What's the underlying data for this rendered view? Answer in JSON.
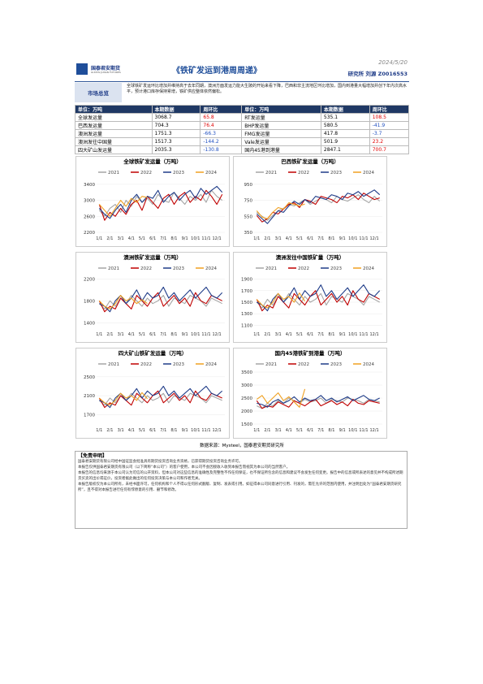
{
  "header": {
    "logo": "国泰君安期货",
    "logo_en": "GUOTAI JUNAN FUTURES",
    "title": "《铁矿发运到港周周递》",
    "date": "2024/5/20",
    "dept": "研究所",
    "author": "刘源",
    "license": "Z0016553"
  },
  "overview": {
    "label": "市场总览",
    "text": "全球铁矿发运环比增加并维持高于去年同期，澳洲方面发运力能大生陂的开始来看下降，巴西和非主流地区环比增加，国内到港量大幅增加并创下年内次高水平，预计港口库存保持累增，铁矿供应整体依然偏松。"
  },
  "table": {
    "header": [
      "单位：万吨",
      "本期数据",
      "周环比",
      "单位：万吨",
      "本期数据",
      "周环比"
    ],
    "rows": [
      [
        "全球发运量",
        3068.7,
        65.8,
        "RT发运量",
        535.1,
        108.5
      ],
      [
        "巴西发运量",
        704.3,
        76.4,
        "BHP发运量",
        580.5,
        -41.9
      ],
      [
        "澳洲发运量",
        1751.3,
        -66.3,
        "FMG发运量",
        417.8,
        -3.7
      ],
      [
        "澳洲发往中国量",
        1517.3,
        -144.2,
        "Vale发运量",
        501.9,
        23.2
      ],
      [
        "四大矿山发运量",
        2035.3,
        -130.8,
        "国内45港到港量",
        2847.1,
        700.7
      ]
    ]
  },
  "chart_data": [
    {
      "type": "line",
      "title": "全球铁矿发运量（万吨）",
      "categories": [
        "1/1",
        null,
        "2/1",
        null,
        "3/1",
        null,
        "4/1",
        null,
        "5/1",
        null,
        "6/1",
        null,
        "7/1",
        null,
        "8/1",
        null,
        "9/1",
        null,
        "10/1",
        null,
        "11/1",
        null,
        "12/1",
        null
      ],
      "ylim": [
        2200,
        3500
      ],
      "yticks": [
        2200,
        2600,
        3000,
        3400
      ],
      "series": [
        {
          "name": "2021",
          "color": "#a5a5a5",
          "values": [
            2750,
            2600,
            2800,
            2900,
            2700,
            3000,
            2850,
            3100,
            2950,
            3050,
            2900,
            3150,
            3000,
            2950,
            3200,
            3050,
            2900,
            3100,
            3000,
            3150,
            2950,
            3250,
            3100,
            3000
          ]
        },
        {
          "name": "2022",
          "color": "#c00000",
          "values": [
            2900,
            2500,
            2700,
            2600,
            2800,
            2650,
            2900,
            3000,
            2750,
            3100,
            2950,
            2800,
            3050,
            3150,
            2900,
            3100,
            3200,
            2950,
            3100,
            3000,
            3250,
            3100,
            2900,
            3150
          ]
        },
        {
          "name": "2023",
          "color": "#1f3c88",
          "values": [
            2800,
            2650,
            2550,
            2750,
            2900,
            2700,
            3000,
            3150,
            2950,
            3100,
            3050,
            3250,
            2950,
            3100,
            3200,
            3000,
            3150,
            3250,
            3050,
            3300,
            3150,
            3250,
            3350,
            3200
          ]
        },
        {
          "name": "2024",
          "color": "#f0a020",
          "values": [
            2900,
            2750,
            2600,
            2800,
            3000,
            2850,
            3050,
            2950,
            3100,
            3070,
            null,
            null,
            null,
            null,
            null,
            null,
            null,
            null,
            null,
            null,
            null,
            null,
            null,
            null
          ]
        }
      ]
    },
    {
      "type": "line",
      "title": "巴西铁矿发运量（万吨）",
      "categories": [
        "1/1",
        null,
        "2/1",
        null,
        "3/1",
        null,
        "4/1",
        null,
        "5/1",
        null,
        "6/1",
        null,
        "7/1",
        null,
        "8/1",
        null,
        "9/1",
        null,
        "10/1",
        null,
        "11/1",
        null,
        "12/1",
        null
      ],
      "ylim": [
        350,
        1000
      ],
      "yticks": [
        350,
        550,
        750,
        950
      ],
      "series": [
        {
          "name": "2021",
          "color": "#a5a5a5",
          "values": [
            600,
            550,
            500,
            560,
            620,
            650,
            700,
            680,
            720,
            760,
            700,
            740,
            780,
            760,
            720,
            800,
            760,
            740,
            780,
            820,
            760,
            720,
            800,
            740
          ]
        },
        {
          "name": "2022",
          "color": "#c00000",
          "values": [
            560,
            480,
            520,
            600,
            580,
            640,
            700,
            720,
            660,
            760,
            740,
            700,
            800,
            780,
            760,
            720,
            800,
            780,
            820,
            760,
            840,
            800,
            760,
            780
          ]
        },
        {
          "name": "2023",
          "color": "#1f3c88",
          "values": [
            580,
            520,
            460,
            540,
            620,
            600,
            680,
            740,
            700,
            760,
            720,
            800,
            780,
            760,
            820,
            800,
            760,
            840,
            820,
            860,
            800,
            840,
            880,
            820
          ]
        },
        {
          "name": "2024",
          "color": "#f0a020",
          "values": [
            620,
            540,
            520,
            600,
            660,
            640,
            720,
            700,
            680,
            704,
            null,
            null,
            null,
            null,
            null,
            null,
            null,
            null,
            null,
            null,
            null,
            null,
            null,
            null
          ]
        }
      ]
    },
    {
      "type": "line",
      "title": "澳洲铁矿发运量（万吨）",
      "categories": [
        "1/1",
        null,
        "2/1",
        null,
        "3/1",
        null,
        "4/1",
        null,
        "5/1",
        null,
        "6/1",
        null,
        "7/1",
        null,
        "8/1",
        null,
        "9/1",
        null,
        "10/1",
        null,
        "11/1",
        null,
        "12/1",
        null
      ],
      "ylim": [
        1300,
        2250
      ],
      "yticks": [
        1400,
        1800,
        2200
      ],
      "series": [
        {
          "name": "2021",
          "color": "#a5a5a5",
          "values": [
            1750,
            1650,
            1800,
            1700,
            1850,
            1750,
            1900,
            1800,
            1700,
            1850,
            1750,
            1800,
            1900,
            1700,
            1850,
            1800,
            1750,
            1900,
            1850,
            1800,
            1700,
            1850,
            1800,
            1750
          ]
        },
        {
          "name": "2022",
          "color": "#c00000",
          "values": [
            1800,
            1600,
            1700,
            1650,
            1850,
            1750,
            1650,
            1900,
            1800,
            1700,
            1850,
            1950,
            1700,
            1800,
            1900,
            1750,
            1850,
            1700,
            1950,
            1800,
            1750,
            1900,
            1850,
            1800
          ]
        },
        {
          "name": "2023",
          "color": "#1f3c88",
          "values": [
            1750,
            1700,
            1600,
            1800,
            1900,
            1750,
            1850,
            2000,
            1800,
            1950,
            1850,
            1900,
            2050,
            1850,
            1950,
            1800,
            1900,
            2000,
            1850,
            1950,
            2050,
            1900,
            1850,
            1950
          ]
        },
        {
          "name": "2024",
          "color": "#f0a020",
          "values": [
            1800,
            1700,
            1650,
            1750,
            1900,
            1800,
            1850,
            1750,
            1820,
            1751,
            null,
            null,
            null,
            null,
            null,
            null,
            null,
            null,
            null,
            null,
            null,
            null,
            null,
            null
          ]
        }
      ]
    },
    {
      "type": "line",
      "title": "澳洲发往中国铁矿量（万吨）",
      "categories": [
        "1/1",
        null,
        "2/1",
        null,
        "3/1",
        null,
        "4/1",
        null,
        "5/1",
        null,
        "6/1",
        null,
        "7/1",
        null,
        "8/1",
        null,
        "9/1",
        null,
        "10/1",
        null,
        "11/1",
        null,
        "12/1",
        null
      ],
      "ylim": [
        1050,
        1950
      ],
      "yticks": [
        1100,
        1300,
        1500,
        1700,
        1900
      ],
      "series": [
        {
          "name": "2021",
          "color": "#a5a5a5",
          "values": [
            1500,
            1400,
            1550,
            1450,
            1600,
            1500,
            1650,
            1550,
            1450,
            1600,
            1500,
            1550,
            1650,
            1450,
            1600,
            1550,
            1500,
            1650,
            1600,
            1550,
            1450,
            1600,
            1550,
            1500
          ]
        },
        {
          "name": "2022",
          "color": "#c00000",
          "values": [
            1550,
            1350,
            1450,
            1400,
            1600,
            1500,
            1400,
            1650,
            1550,
            1450,
            1600,
            1700,
            1450,
            1550,
            1650,
            1500,
            1600,
            1450,
            1700,
            1550,
            1500,
            1650,
            1600,
            1550
          ]
        },
        {
          "name": "2023",
          "color": "#1f3c88",
          "values": [
            1500,
            1450,
            1350,
            1550,
            1650,
            1500,
            1600,
            1750,
            1550,
            1700,
            1600,
            1650,
            1800,
            1600,
            1700,
            1550,
            1650,
            1750,
            1600,
            1700,
            1800,
            1650,
            1600,
            1700
          ]
        },
        {
          "name": "2024",
          "color": "#f0a020",
          "values": [
            1550,
            1450,
            1400,
            1500,
            1650,
            1550,
            1600,
            1500,
            1660,
            1517.3,
            null,
            null,
            null,
            null,
            null,
            null,
            null,
            null,
            null,
            null,
            null,
            null,
            null,
            null
          ]
        }
      ]
    },
    {
      "type": "line",
      "title": "四大矿山铁矿发运量（万吨）",
      "categories": [
        "1/1",
        null,
        "2/1",
        null,
        "3/1",
        null,
        "4/1",
        null,
        "5/1",
        null,
        "6/1",
        null,
        "7/1",
        null,
        "8/1",
        null,
        "9/1",
        null,
        "10/1",
        null,
        "11/1",
        null,
        "12/1",
        null
      ],
      "ylim": [
        1500,
        2600
      ],
      "yticks": [
        1700,
        2100,
        2500
      ],
      "series": [
        {
          "name": "2021",
          "color": "#a5a5a5",
          "values": [
            2000,
            1900,
            2050,
            1950,
            2100,
            2000,
            2150,
            2050,
            1950,
            2100,
            2000,
            2050,
            2150,
            1950,
            2100,
            2050,
            2000,
            2150,
            2100,
            2050,
            1950,
            2100,
            2050,
            2000
          ]
        },
        {
          "name": "2022",
          "color": "#c00000",
          "values": [
            2050,
            1850,
            1950,
            1900,
            2100,
            2000,
            1900,
            2150,
            2050,
            1950,
            2100,
            2200,
            1950,
            2050,
            2150,
            2000,
            2100,
            1950,
            2200,
            2050,
            2000,
            2150,
            2100,
            2050
          ]
        },
        {
          "name": "2023",
          "color": "#1f3c88",
          "values": [
            2000,
            1950,
            1850,
            2050,
            2150,
            2000,
            2100,
            2250,
            2050,
            2200,
            2100,
            2150,
            2300,
            2100,
            2200,
            2050,
            2150,
            2250,
            2100,
            2200,
            2300,
            2150,
            2100,
            2200
          ]
        },
        {
          "name": "2024",
          "color": "#f0a020",
          "values": [
            2050,
            1950,
            1900,
            2000,
            2150,
            2050,
            2100,
            2000,
            2165,
            2035.3,
            null,
            null,
            null,
            null,
            null,
            null,
            null,
            null,
            null,
            null,
            null,
            null,
            null,
            null
          ]
        }
      ]
    },
    {
      "type": "line",
      "title": "国内45港铁矿到港量（万吨）",
      "categories": [
        "1/1",
        null,
        "2/1",
        null,
        "3/1",
        null,
        "4/1",
        null,
        "5/1",
        null,
        "6/1",
        null,
        "7/1",
        null,
        "8/1",
        null,
        "9/1",
        null,
        "10/1",
        null,
        "11/1",
        null,
        "12/1",
        null
      ],
      "ylim": [
        1500,
        3500
      ],
      "yticks": [
        1500,
        2000,
        2500,
        3000,
        3500
      ],
      "series": [
        {
          "name": "2021",
          "color": "#a5a5a5",
          "values": [
            2200,
            2100,
            2300,
            2200,
            2400,
            2300,
            2500,
            2400,
            2300,
            2450,
            2350,
            2400,
            2500,
            2300,
            2450,
            2400,
            2350,
            2500,
            2450,
            2400,
            2300,
            2450,
            2400,
            2350
          ]
        },
        {
          "name": "2022",
          "color": "#c00000",
          "values": [
            2400,
            2100,
            2200,
            2150,
            2350,
            2250,
            2150,
            2400,
            2300,
            2200,
            2350,
            2450,
            2200,
            2300,
            2400,
            2250,
            2350,
            2200,
            2450,
            2300,
            2250,
            2400,
            2350,
            2300
          ]
        },
        {
          "name": "2023",
          "color": "#1f3c88",
          "values": [
            2300,
            2250,
            2150,
            2350,
            2450,
            2300,
            2400,
            2550,
            2350,
            2500,
            2400,
            2450,
            2600,
            2400,
            2500,
            2350,
            2450,
            2550,
            2400,
            2500,
            2600,
            2450,
            2400,
            2500
          ]
        },
        {
          "name": "2024",
          "color": "#f0a020",
          "values": [
            2450,
            2600,
            2300,
            2500,
            2700,
            2400,
            2550,
            2350,
            2147,
            2847.1,
            null,
            null,
            null,
            null,
            null,
            null,
            null,
            null,
            null,
            null,
            null,
            null,
            null,
            null
          ]
        }
      ]
    }
  ],
  "source": "数据来源：Mysteel，国泰君安期货研究所",
  "disclaimer": {
    "title": "【免责申明】",
    "paragraphs": [
      "国泰君安期货有限公司经中国证监会批准具有期货投资咨询业务资格，已获得期货投资咨询业务许可。",
      "本报告仅供国泰君安期货有限公司（以下简称“本公司”）的客户使用，本公司不会因接收人收到本报告而视其为本公司的当然客户。",
      "本报告的信息均来源于本公司认为可信的公开资料，但本公司对这些信息的准确性及完整性不作任何保证，也不保证所包含的信息和建议不会发生任何变更。报告中的信息或所表述的意见并不构成所述期货买卖的出价或征价，投资者据此做出的任何投资决策与本公司和作者无关。",
      "本报告版权仅为本公司所有，未经书面许可，任何机构和个人不得以任何形式翻版、复制、发表或引用。如征得本公司同意进行引用、刊发的，需在允许的范围内使用，并注明出处为“国泰君安期货研究所”，且不得对本报告进行任何有悖原意的引用、删节和修改。"
    ]
  }
}
